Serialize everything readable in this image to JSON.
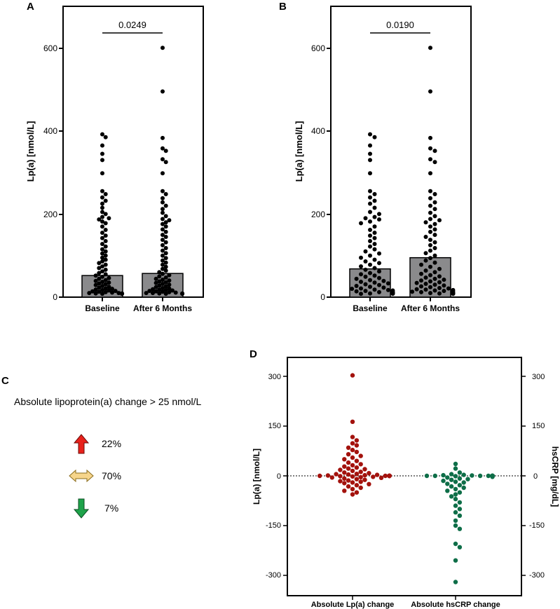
{
  "panels": {
    "A": {
      "letter": "A",
      "ylabel": "Lp(a) [nmol/L]",
      "pvalue": "0.0249",
      "yticks": [
        "0",
        "200",
        "400",
        "600"
      ],
      "categories": [
        "Baseline",
        "After 6 Months"
      ]
    },
    "B": {
      "letter": "B",
      "ylabel": "Lp(a) [nmol/L]",
      "pvalue": "0.0190",
      "yticks": [
        "0",
        "200",
        "400",
        "600"
      ],
      "categories": [
        "Baseline",
        "After 6 Months"
      ]
    },
    "C": {
      "letter": "C",
      "heading": "Absolute lipoprotein(a) change > 25 nmol/L",
      "rows": [
        {
          "icon": "up-arrow-icon",
          "color": "#e8211b",
          "value": "22%"
        },
        {
          "icon": "double-arrow-icon",
          "color": "#f6d58b",
          "value": "70%"
        },
        {
          "icon": "down-arrow-icon",
          "color": "#1ea34a",
          "value": "7%"
        }
      ]
    },
    "D": {
      "letter": "D",
      "ylabel_left": "Lp(a) [nmol/L]",
      "ylabel_right": "hsCRP [mg/dL]",
      "yticks": [
        "300",
        "150",
        "0",
        "-150",
        "-300"
      ],
      "categories": [
        "Absolute Lp(a) change",
        "Absolute hsCRP change"
      ]
    }
  },
  "chart_data": [
    {
      "panel": "A",
      "type": "bar",
      "categories": [
        "Baseline",
        "After 6 Months"
      ],
      "values": [
        52,
        57
      ],
      "ylabel": "Lp(a) [nmol/L]",
      "ylim": [
        0,
        700
      ],
      "bar_color": "#8a8a8c",
      "annotation": {
        "text": "0.0249",
        "between": [
          "Baseline",
          "After 6 Months"
        ]
      },
      "points": {
        "Baseline": [
          392,
          385,
          365,
          345,
          330,
          298,
          255,
          248,
          240,
          232,
          225,
          215,
          205,
          200,
          193,
          190,
          187,
          182,
          178,
          170,
          162,
          155,
          148,
          142,
          135,
          128,
          122,
          115,
          110,
          105,
          100,
          95,
          90,
          86,
          82,
          78,
          74,
          70,
          66,
          62,
          58,
          55,
          52,
          49,
          46,
          44,
          41,
          39,
          37,
          35,
          33,
          31,
          29,
          27,
          25,
          23,
          21,
          20,
          18,
          17,
          16,
          15,
          14,
          13,
          12,
          11,
          10,
          10,
          9,
          9,
          8,
          8
        ],
        "After 6 Months": [
          600,
          495,
          383,
          358,
          352,
          332,
          325,
          298,
          255,
          248,
          238,
          228,
          220,
          212,
          203,
          195,
          188,
          185,
          180,
          176,
          170,
          163,
          157,
          150,
          145,
          138,
          132,
          125,
          118,
          112,
          106,
          100,
          94,
          88,
          83,
          78,
          73,
          68,
          64,
          60,
          56,
          53,
          50,
          47,
          44,
          42,
          40,
          38,
          36,
          34,
          32,
          30,
          28,
          26,
          24,
          22,
          21,
          19,
          18,
          17,
          16,
          15,
          14,
          13,
          12,
          11,
          10,
          10,
          9,
          9,
          8,
          8
        ]
      }
    },
    {
      "panel": "B",
      "type": "bar",
      "categories": [
        "Baseline",
        "After 6 Months"
      ],
      "values": [
        68,
        95
      ],
      "ylabel": "Lp(a) [nmol/L]",
      "ylim": [
        0,
        700
      ],
      "bar_color": "#8a8a8c",
      "annotation": {
        "text": "0.0190",
        "between": [
          "Baseline",
          "After 6 Months"
        ]
      },
      "points": {
        "Baseline": [
          392,
          385,
          365,
          345,
          330,
          298,
          255,
          248,
          240,
          232,
          225,
          215,
          205,
          200,
          193,
          190,
          187,
          182,
          178,
          170,
          162,
          155,
          148,
          142,
          135,
          128,
          122,
          115,
          110,
          105,
          100,
          95,
          90,
          86,
          82,
          78,
          74,
          70,
          66,
          62,
          58,
          55,
          52,
          49,
          46,
          44,
          41,
          39,
          37,
          35,
          33,
          31,
          29,
          27,
          25,
          23,
          21,
          20,
          18,
          17,
          16,
          15,
          14,
          13,
          12,
          11,
          10,
          10,
          9,
          9,
          8,
          8
        ],
        "After 6 Months": [
          600,
          495,
          383,
          358,
          352,
          332,
          325,
          298,
          255,
          248,
          238,
          228,
          220,
          212,
          203,
          195,
          188,
          185,
          180,
          176,
          170,
          163,
          157,
          150,
          145,
          138,
          132,
          125,
          118,
          112,
          106,
          100,
          94,
          88,
          83,
          78,
          73,
          68,
          64,
          60,
          56,
          53,
          50,
          47,
          44,
          42,
          40,
          38,
          36,
          34,
          32,
          30,
          28,
          26,
          24,
          22,
          21,
          19,
          18,
          17,
          16,
          15,
          14,
          13,
          12,
          11,
          10,
          10,
          9,
          9,
          8,
          8
        ]
      }
    },
    {
      "panel": "D",
      "type": "scatter",
      "categories": [
        "Absolute Lp(a) change",
        "Absolute hsCRP change"
      ],
      "ylim": [
        -350,
        350
      ],
      "ylabel": "Lp(a) [nmol/L]",
      "ylabel_right": "hsCRP [mg/dL]",
      "reference_line": 0,
      "series": [
        {
          "name": "Absolute Lp(a) change",
          "color": "#a3120d",
          "values": [
            303,
            163,
            117,
            107,
            98,
            92,
            85,
            78,
            72,
            65,
            60,
            55,
            50,
            45,
            40,
            35,
            32,
            28,
            25,
            22,
            20,
            18,
            15,
            12,
            10,
            8,
            6,
            5,
            4,
            3,
            2,
            1,
            0,
            0,
            0,
            0,
            0,
            0,
            0,
            0,
            0,
            0,
            0,
            0,
            0,
            0,
            0,
            0,
            0,
            0,
            -1,
            -2,
            -3,
            -4,
            -5,
            -6,
            -8,
            -10,
            -12,
            -14,
            -16,
            -18,
            -20,
            -22,
            -25,
            -28,
            -32,
            -36,
            -40,
            -45,
            -50,
            -56
          ]
        },
        {
          "name": "Absolute hsCRP change",
          "color": "#0e6e48",
          "values": [
            36,
            22,
            10,
            5,
            3,
            2,
            1,
            0,
            0,
            0,
            0,
            0,
            0,
            0,
            0,
            0,
            0,
            0,
            0,
            0,
            0,
            0,
            0,
            0,
            0,
            0,
            0,
            0,
            0,
            -1,
            -2,
            -3,
            -5,
            -8,
            -10,
            -12,
            -15,
            -18,
            -20,
            -24,
            -28,
            -32,
            -36,
            -40,
            -45,
            -50,
            -56,
            -62,
            -70,
            -80,
            -90,
            -100,
            -110,
            -120,
            -135,
            -150,
            -160,
            -205,
            -215,
            -255,
            -320
          ]
        }
      ]
    }
  ]
}
